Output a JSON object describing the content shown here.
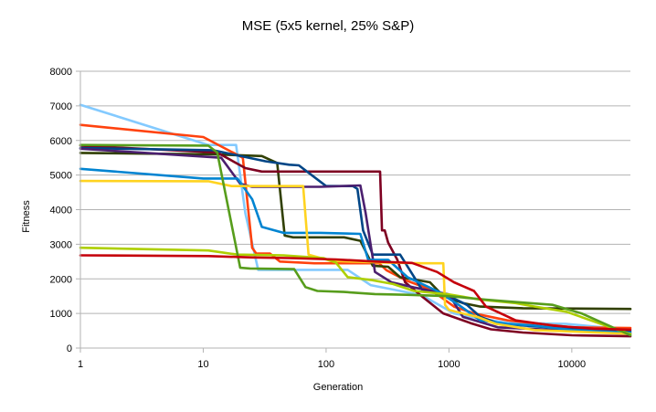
{
  "chart_data": {
    "type": "line",
    "title": "MSE (5x5 kernel, 25% S&P)",
    "xlabel": "Generation",
    "ylabel": "Fitness",
    "xscale": "log",
    "xlim": [
      1,
      30000
    ],
    "ylim": [
      0,
      8000
    ],
    "grid": "horizontal",
    "legend": "none",
    "x_ticks": [
      1,
      10,
      100,
      1000,
      10000
    ],
    "x_tick_labels": [
      "1",
      "10",
      "100",
      "1000",
      "10000"
    ],
    "y_ticks": [
      0,
      1000,
      2000,
      3000,
      4000,
      5000,
      6000,
      7000,
      8000
    ],
    "y_tick_labels": [
      "0",
      "1000",
      "2000",
      "3000",
      "4000",
      "5000",
      "6000",
      "7000",
      "8000"
    ],
    "series": [
      {
        "color": "#83caff",
        "points": [
          [
            1,
            7030
          ],
          [
            11,
            5870
          ],
          [
            18.5,
            5870
          ],
          [
            22,
            3900
          ],
          [
            28,
            2260
          ],
          [
            150,
            2260
          ],
          [
            230,
            1820
          ],
          [
            600,
            1530
          ],
          [
            1100,
            1000
          ],
          [
            1800,
            850
          ],
          [
            3000,
            730
          ],
          [
            9000,
            700
          ],
          [
            30000,
            520
          ]
        ]
      },
      {
        "color": "#ff420e",
        "points": [
          [
            1,
            6450
          ],
          [
            10,
            6100
          ],
          [
            21,
            5500
          ],
          [
            25,
            2900
          ],
          [
            27,
            2730
          ],
          [
            35,
            2730
          ],
          [
            42,
            2500
          ],
          [
            80,
            2450
          ],
          [
            270,
            2450
          ],
          [
            310,
            2250
          ],
          [
            450,
            1950
          ],
          [
            700,
            1700
          ],
          [
            1100,
            1200
          ],
          [
            1600,
            1000
          ],
          [
            3000,
            800
          ],
          [
            10000,
            600
          ],
          [
            30000,
            580
          ]
        ]
      },
      {
        "color": "#314004",
        "points": [
          [
            1,
            5640
          ],
          [
            12,
            5600
          ],
          [
            30,
            5550
          ],
          [
            40,
            5350
          ],
          [
            46,
            3250
          ],
          [
            54,
            3200
          ],
          [
            140,
            3200
          ],
          [
            190,
            3100
          ],
          [
            240,
            2380
          ],
          [
            320,
            2350
          ],
          [
            400,
            2050
          ],
          [
            700,
            1900
          ],
          [
            900,
            1500
          ],
          [
            1300,
            1300
          ],
          [
            1800,
            1200
          ],
          [
            4000,
            1150
          ],
          [
            30000,
            1130
          ]
        ]
      },
      {
        "color": "#7e0021",
        "points": [
          [
            1,
            5850
          ],
          [
            13,
            5650
          ],
          [
            22,
            5200
          ],
          [
            30,
            5100
          ],
          [
            100,
            5100
          ],
          [
            275,
            5100
          ],
          [
            285,
            3400
          ],
          [
            300,
            3400
          ],
          [
            320,
            3050
          ],
          [
            380,
            2550
          ],
          [
            440,
            1900
          ],
          [
            600,
            1500
          ],
          [
            900,
            1000
          ],
          [
            1500,
            720
          ],
          [
            2200,
            540
          ],
          [
            4000,
            450
          ],
          [
            10000,
            370
          ],
          [
            30000,
            340
          ]
        ]
      },
      {
        "color": "#004586",
        "points": [
          [
            1,
            5780
          ],
          [
            12,
            5720
          ],
          [
            32,
            5400
          ],
          [
            50,
            5300
          ],
          [
            60,
            5280
          ],
          [
            100,
            4680
          ],
          [
            165,
            4680
          ],
          [
            180,
            4600
          ],
          [
            200,
            3400
          ],
          [
            240,
            2700
          ],
          [
            400,
            2700
          ],
          [
            600,
            1700
          ],
          [
            1000,
            1500
          ],
          [
            1400,
            1250
          ],
          [
            1800,
            900
          ],
          [
            2600,
            700
          ],
          [
            10000,
            550
          ],
          [
            30000,
            480
          ]
        ]
      },
      {
        "color": "#4b1f6f",
        "points": [
          [
            1,
            5760
          ],
          [
            14,
            5500
          ],
          [
            20,
            4750
          ],
          [
            25,
            4660
          ],
          [
            90,
            4660
          ],
          [
            190,
            4700
          ],
          [
            210,
            3900
          ],
          [
            250,
            2200
          ],
          [
            340,
            1900
          ],
          [
            520,
            1750
          ],
          [
            1000,
            1550
          ],
          [
            1300,
            900
          ],
          [
            2500,
            600
          ],
          [
            30000,
            420
          ]
        ]
      },
      {
        "color": "#0084d1",
        "points": [
          [
            1,
            5180
          ],
          [
            10,
            4900
          ],
          [
            19,
            4900
          ],
          [
            25,
            4300
          ],
          [
            30,
            3500
          ],
          [
            45,
            3330
          ],
          [
            90,
            3330
          ],
          [
            190,
            3300
          ],
          [
            220,
            2550
          ],
          [
            320,
            2550
          ],
          [
            460,
            2050
          ],
          [
            800,
            1650
          ],
          [
            1200,
            1250
          ],
          [
            1800,
            800
          ],
          [
            3000,
            700
          ],
          [
            5000,
            650
          ],
          [
            10000,
            520
          ],
          [
            30000,
            440
          ]
        ]
      },
      {
        "color": "#ffd320",
        "points": [
          [
            1,
            4830
          ],
          [
            11,
            4820
          ],
          [
            17,
            4680
          ],
          [
            65,
            4680
          ],
          [
            72,
            2700
          ],
          [
            110,
            2520
          ],
          [
            300,
            2470
          ],
          [
            600,
            2450
          ],
          [
            900,
            2450
          ],
          [
            930,
            1250
          ],
          [
            1000,
            1100
          ],
          [
            1300,
            1000
          ],
          [
            1700,
            900
          ],
          [
            2400,
            700
          ],
          [
            5000,
            520
          ],
          [
            30000,
            410
          ]
        ]
      },
      {
        "color": "#aecf00",
        "points": [
          [
            1,
            2900
          ],
          [
            11,
            2820
          ],
          [
            19,
            2700
          ],
          [
            45,
            2680
          ],
          [
            95,
            2600
          ],
          [
            120,
            2470
          ],
          [
            150,
            2050
          ],
          [
            230,
            1970
          ],
          [
            350,
            1850
          ],
          [
            520,
            1650
          ],
          [
            1000,
            1550
          ],
          [
            1800,
            1400
          ],
          [
            3500,
            1300
          ],
          [
            5000,
            1200
          ],
          [
            9000,
            1050
          ],
          [
            30000,
            400
          ]
        ]
      },
      {
        "color": "#579d1c",
        "points": [
          [
            1,
            5870
          ],
          [
            11,
            5850
          ],
          [
            13,
            5650
          ],
          [
            20,
            2320
          ],
          [
            24,
            2300
          ],
          [
            55,
            2280
          ],
          [
            68,
            1760
          ],
          [
            85,
            1650
          ],
          [
            140,
            1620
          ],
          [
            250,
            1560
          ],
          [
            450,
            1540
          ],
          [
            1000,
            1500
          ],
          [
            2000,
            1400
          ],
          [
            3000,
            1350
          ],
          [
            7000,
            1250
          ],
          [
            12000,
            1000
          ],
          [
            30000,
            370
          ]
        ]
      },
      {
        "color": "#c5000b",
        "points": [
          [
            1,
            2680
          ],
          [
            11,
            2660
          ],
          [
            25,
            2620
          ],
          [
            50,
            2600
          ],
          [
            120,
            2560
          ],
          [
            250,
            2500
          ],
          [
            500,
            2460
          ],
          [
            800,
            2200
          ],
          [
            1100,
            1900
          ],
          [
            1600,
            1650
          ],
          [
            2000,
            1200
          ],
          [
            3500,
            800
          ],
          [
            7000,
            650
          ],
          [
            15000,
            560
          ],
          [
            30000,
            530
          ]
        ]
      }
    ]
  }
}
